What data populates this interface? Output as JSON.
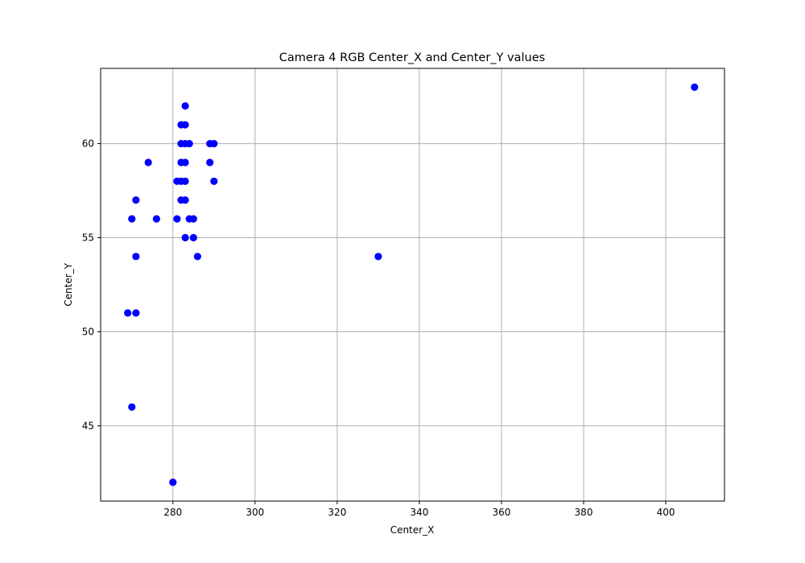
{
  "chart_data": {
    "type": "scatter",
    "title": "Camera 4 RGB Center_X and Center_Y values",
    "xlabel": "Center_X",
    "ylabel": "Center_Y",
    "xlim": [
      262.4,
      414.3
    ],
    "ylim": [
      41.0,
      64.0
    ],
    "xticks": [
      280,
      300,
      320,
      340,
      360,
      380,
      400
    ],
    "yticks": [
      45,
      50,
      55,
      60
    ],
    "grid": true,
    "marker_color": "#0000ff",
    "points": [
      {
        "x": 407,
        "y": 63
      },
      {
        "x": 283,
        "y": 62
      },
      {
        "x": 282,
        "y": 61
      },
      {
        "x": 283,
        "y": 61
      },
      {
        "x": 282,
        "y": 60
      },
      {
        "x": 283,
        "y": 60
      },
      {
        "x": 284,
        "y": 60
      },
      {
        "x": 289,
        "y": 60
      },
      {
        "x": 290,
        "y": 60
      },
      {
        "x": 274,
        "y": 59
      },
      {
        "x": 282,
        "y": 59
      },
      {
        "x": 283,
        "y": 59
      },
      {
        "x": 289,
        "y": 59
      },
      {
        "x": 281,
        "y": 58
      },
      {
        "x": 282,
        "y": 58
      },
      {
        "x": 283,
        "y": 58
      },
      {
        "x": 290,
        "y": 58
      },
      {
        "x": 271,
        "y": 57
      },
      {
        "x": 282,
        "y": 57
      },
      {
        "x": 283,
        "y": 57
      },
      {
        "x": 270,
        "y": 56
      },
      {
        "x": 276,
        "y": 56
      },
      {
        "x": 281,
        "y": 56
      },
      {
        "x": 284,
        "y": 56
      },
      {
        "x": 285,
        "y": 56
      },
      {
        "x": 283,
        "y": 55
      },
      {
        "x": 285,
        "y": 55
      },
      {
        "x": 271,
        "y": 54
      },
      {
        "x": 286,
        "y": 54
      },
      {
        "x": 330,
        "y": 54
      },
      {
        "x": 269,
        "y": 51
      },
      {
        "x": 271,
        "y": 51
      },
      {
        "x": 270,
        "y": 46
      },
      {
        "x": 280,
        "y": 42
      }
    ]
  }
}
